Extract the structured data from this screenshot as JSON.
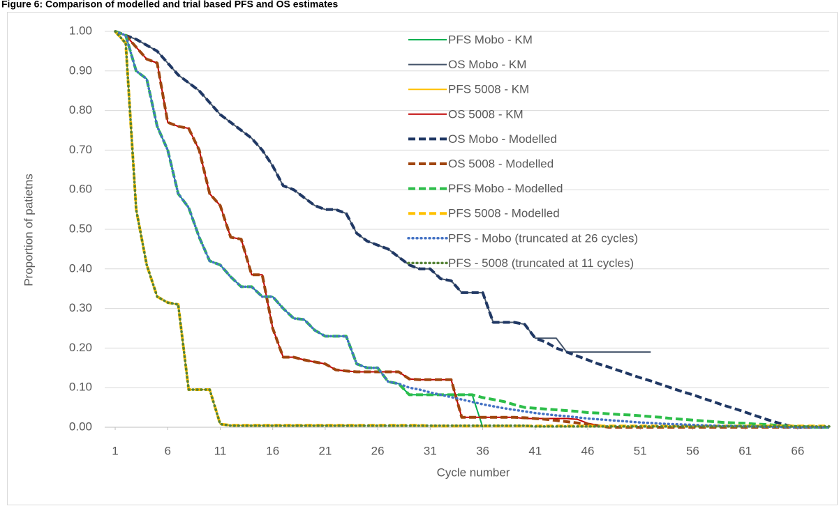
{
  "chart_data": {
    "type": "line",
    "title": "Figure 6: Comparison of modelled and trial based PFS and OS estimates",
    "x_label": "Cycle number",
    "y_label": "Proportion of patietns",
    "x": [
      1,
      2,
      3,
      4,
      5,
      6,
      7,
      8,
      9,
      10,
      11,
      12,
      13,
      14,
      15,
      16,
      17,
      18,
      19,
      20,
      21,
      22,
      23,
      24,
      25,
      26,
      27,
      28,
      29,
      30,
      31,
      32,
      33,
      34,
      35,
      36,
      37,
      38,
      39,
      40,
      41,
      42,
      43,
      44,
      45,
      46,
      47,
      48,
      49,
      50,
      51,
      52,
      53,
      54,
      55,
      56,
      57,
      58,
      59,
      60,
      61,
      62,
      63,
      64,
      65,
      66,
      67,
      68,
      69
    ],
    "xlim": [
      0,
      69
    ],
    "xticks": [
      1,
      6,
      11,
      16,
      21,
      26,
      31,
      36,
      41,
      46,
      51,
      56,
      61,
      66
    ],
    "ylim": [
      0,
      1
    ],
    "yticks": [
      {
        "value": 0,
        "label": "0.00"
      },
      {
        "value": 0.1,
        "label": "0.10"
      },
      {
        "value": 0.2,
        "label": "0.20"
      },
      {
        "value": 0.3,
        "label": "0.30"
      },
      {
        "value": 0.4,
        "label": "0.40"
      },
      {
        "value": 0.5,
        "label": "0.50"
      },
      {
        "value": 0.6,
        "label": "0.60"
      },
      {
        "value": 0.7,
        "label": "0.70"
      },
      {
        "value": 0.8,
        "label": "0.80"
      },
      {
        "value": 0.9,
        "label": "0.90"
      },
      {
        "value": 1,
        "label": "1.00"
      }
    ],
    "grid": true,
    "legend_position": "top-center",
    "series": [
      {
        "name": "PFS Mobo - KM",
        "color": "#00b050",
        "dash": "solid",
        "values": [
          1.0,
          0.99,
          0.9,
          0.88,
          0.76,
          0.7,
          0.59,
          0.555,
          0.48,
          0.42,
          0.41,
          0.38,
          0.355,
          0.355,
          0.33,
          0.33,
          0.3,
          0.275,
          0.272,
          0.245,
          0.23,
          0.23,
          0.23,
          0.16,
          0.15,
          0.15,
          0.115,
          0.11,
          0.082,
          0.082,
          0.082,
          0.082,
          0.082,
          0.082,
          0.082,
          0,
          null,
          null,
          null,
          null,
          null,
          null,
          null,
          null,
          null,
          null,
          null,
          null,
          null,
          null,
          null,
          null,
          null,
          null,
          null,
          null,
          null,
          null,
          null,
          null,
          null,
          null,
          null,
          null,
          null,
          null,
          null,
          null,
          null
        ]
      },
      {
        "name": "OS Mobo - KM",
        "color": "#44546a",
        "dash": "solid",
        "values": [
          1.0,
          0.99,
          0.98,
          0.965,
          0.95,
          0.92,
          0.89,
          0.87,
          0.85,
          0.82,
          0.79,
          0.77,
          0.75,
          0.73,
          0.7,
          0.66,
          0.61,
          0.6,
          0.58,
          0.56,
          0.55,
          0.55,
          0.54,
          0.49,
          0.47,
          0.46,
          0.45,
          0.43,
          0.41,
          0.4,
          0.4,
          0.375,
          0.37,
          0.34,
          0.34,
          0.34,
          0.265,
          0.265,
          0.265,
          0.26,
          0.225,
          0.225,
          0.225,
          0.19,
          0.19,
          0.19,
          0.19,
          0.19,
          0.19,
          0.19,
          0.19,
          0.19,
          null,
          null,
          null,
          null,
          null,
          null,
          null,
          null,
          null,
          null,
          null,
          null,
          null,
          null,
          null,
          null,
          null
        ]
      },
      {
        "name": "PFS 5008 - KM",
        "color": "#ffc000",
        "dash": "solid",
        "values": [
          1.0,
          0.97,
          0.55,
          0.41,
          0.33,
          0.315,
          0.31,
          0.095,
          0.095,
          0.095,
          0.008,
          0.005,
          0.005,
          0.005,
          0.005,
          0.005,
          0.005,
          0.005,
          0.005,
          0.005,
          0.005,
          0.005,
          0.005,
          0.005,
          null,
          null,
          null,
          null,
          null,
          null,
          null,
          null,
          null,
          null,
          null,
          null,
          null,
          null,
          null,
          null,
          null,
          null,
          null,
          null,
          null,
          null,
          null,
          null,
          null,
          null,
          null,
          null,
          null,
          null,
          null,
          null,
          null,
          null,
          null,
          null,
          null,
          null,
          null,
          null,
          null,
          null,
          null,
          null,
          null
        ]
      },
      {
        "name": "OS 5008 - KM",
        "color": "#c00000",
        "dash": "solid",
        "values": [
          1.0,
          0.99,
          0.96,
          0.93,
          0.92,
          0.77,
          0.76,
          0.755,
          0.7,
          0.59,
          0.56,
          0.48,
          0.475,
          0.385,
          0.385,
          0.25,
          0.177,
          0.177,
          0.17,
          0.165,
          0.16,
          0.145,
          0.142,
          0.14,
          0.14,
          0.14,
          0.14,
          0.14,
          0.122,
          0.12,
          0.12,
          0.12,
          0.12,
          0.025,
          0.025,
          0.025,
          0.025,
          0.025,
          0.025,
          0.022,
          0.022,
          0.022,
          0.022,
          0.022,
          0.02,
          0.01,
          0.005,
          0,
          null,
          null,
          null,
          null,
          null,
          null,
          null,
          null,
          null,
          null,
          null,
          null,
          null,
          null,
          null,
          null,
          null,
          null,
          null,
          null,
          null
        ]
      },
      {
        "name": "OS Mobo - Modelled",
        "color": "#203864",
        "dash": "dashed",
        "values": [
          1.0,
          0.99,
          0.98,
          0.965,
          0.95,
          0.92,
          0.89,
          0.87,
          0.85,
          0.82,
          0.79,
          0.77,
          0.75,
          0.73,
          0.7,
          0.66,
          0.61,
          0.6,
          0.58,
          0.56,
          0.55,
          0.55,
          0.54,
          0.49,
          0.47,
          0.46,
          0.45,
          0.43,
          0.41,
          0.4,
          0.4,
          0.375,
          0.37,
          0.34,
          0.34,
          0.34,
          0.265,
          0.265,
          0.265,
          0.26,
          0.225,
          0.215,
          0.2,
          0.19,
          0.18,
          0.17,
          0.16,
          0.152,
          0.143,
          0.134,
          0.125,
          0.117,
          0.108,
          0.099,
          0.09,
          0.082,
          0.073,
          0.064,
          0.055,
          0.047,
          0.038,
          0.029,
          0.02,
          0.012,
          0.005,
          0,
          0,
          0,
          0
        ]
      },
      {
        "name": "OS 5008 - Modelled",
        "color": "#a0450f",
        "dash": "dashed",
        "values": [
          1.0,
          0.99,
          0.96,
          0.93,
          0.92,
          0.77,
          0.76,
          0.755,
          0.7,
          0.59,
          0.56,
          0.48,
          0.475,
          0.385,
          0.385,
          0.25,
          0.177,
          0.177,
          0.17,
          0.165,
          0.16,
          0.145,
          0.142,
          0.14,
          0.14,
          0.14,
          0.14,
          0.14,
          0.122,
          0.12,
          0.12,
          0.12,
          0.12,
          0.025,
          0.025,
          0.025,
          0.025,
          0.025,
          0.025,
          0.024,
          0.022,
          0.02,
          0.017,
          0.014,
          0.011,
          0.008,
          0.004,
          0,
          0,
          0,
          0,
          0,
          0,
          0,
          0,
          0,
          0,
          0,
          0,
          0,
          0,
          0,
          0,
          0,
          0,
          0,
          0,
          0,
          0
        ]
      },
      {
        "name": "PFS Mobo - Modelled",
        "color": "#2dbe4a",
        "dash": "dashed",
        "values": [
          1.0,
          0.99,
          0.9,
          0.88,
          0.76,
          0.7,
          0.59,
          0.555,
          0.48,
          0.42,
          0.41,
          0.38,
          0.355,
          0.355,
          0.33,
          0.33,
          0.3,
          0.275,
          0.272,
          0.245,
          0.23,
          0.23,
          0.23,
          0.16,
          0.15,
          0.15,
          0.115,
          0.11,
          0.082,
          0.082,
          0.082,
          0.082,
          0.082,
          0.082,
          0.082,
          0.075,
          0.07,
          0.065,
          0.057,
          0.05,
          0.048,
          0.046,
          0.044,
          0.042,
          0.04,
          0.037,
          0.036,
          0.034,
          0.032,
          0.031,
          0.029,
          0.027,
          0.025,
          0.022,
          0.02,
          0.018,
          0.016,
          0.014,
          0.012,
          0.011,
          0.01,
          0.008,
          0.007,
          0.005,
          0.003,
          0.002,
          0.001,
          0,
          0
        ]
      },
      {
        "name": "PFS 5008 - Modelled",
        "color": "#ffc000",
        "dash": "dashed",
        "values": [
          1.0,
          0.97,
          0.55,
          0.41,
          0.33,
          0.315,
          0.31,
          0.095,
          0.095,
          0.095,
          0.008,
          0.005,
          0.005,
          0.005,
          0.005,
          0.005,
          0.005,
          0.005,
          0.005,
          0.005,
          0.005,
          0.005,
          0.005,
          0.005,
          0.005,
          0.005,
          0.005,
          0.005,
          0.005,
          0.005,
          0.003,
          0.003,
          0.003,
          0.003,
          0.003,
          0.003,
          0.003,
          0.003,
          0.003,
          0.003,
          0.003,
          0.003,
          0.003,
          0.003,
          0.003,
          0.003,
          0.003,
          0.003,
          0.003,
          0.003,
          0.003,
          0.003,
          0.003,
          0.003,
          0.003,
          0.003,
          0.003,
          0.003,
          0.003,
          0.003,
          0.003,
          0.003,
          0.003,
          0.003,
          0.003,
          0.003,
          0.003,
          0.003,
          0.003
        ]
      },
      {
        "name": "PFS - Mobo (truncated at 26 cycles)",
        "color": "#4472c4",
        "dash": "dotted",
        "values": [
          1.0,
          0.99,
          0.9,
          0.88,
          0.76,
          0.7,
          0.59,
          0.555,
          0.48,
          0.42,
          0.41,
          0.38,
          0.355,
          0.355,
          0.33,
          0.33,
          0.3,
          0.275,
          0.272,
          0.245,
          0.23,
          0.23,
          0.23,
          0.16,
          0.15,
          0.15,
          0.115,
          0.11,
          0.1,
          0.095,
          0.088,
          0.082,
          0.076,
          0.07,
          0.064,
          0.058,
          0.053,
          0.048,
          0.044,
          0.04,
          0.036,
          0.033,
          0.03,
          0.028,
          0.025,
          0.022,
          0.02,
          0.018,
          0.016,
          0.014,
          0.012,
          0.011,
          0.009,
          0.008,
          0.007,
          0.006,
          0.005,
          0.004,
          0.003,
          0.003,
          0.002,
          0.002,
          0.001,
          0.001,
          0,
          0,
          0,
          0,
          0
        ]
      },
      {
        "name": "PFS - 5008 (truncated at 11 cycles)",
        "color": "#548235",
        "dash": "dotted",
        "values": [
          1.0,
          0.97,
          0.55,
          0.41,
          0.33,
          0.315,
          0.31,
          0.095,
          0.095,
          0.095,
          0.008,
          0.004,
          0.004,
          0.004,
          0.004,
          0.004,
          0.004,
          0.004,
          0.004,
          0.004,
          0.004,
          0.004,
          0.004,
          0.004,
          0.004,
          0.004,
          0.004,
          0.004,
          0.004,
          0.004,
          0.004,
          0.004,
          0.004,
          0.004,
          0.004,
          0.004,
          0.004,
          0.004,
          0.004,
          0.004,
          0.002,
          0.002,
          0.002,
          0.002,
          0.002,
          0.002,
          0.002,
          0.002,
          0.002,
          0.002,
          0.002,
          0.002,
          0.002,
          0.002,
          0.002,
          0.002,
          0.002,
          0.002,
          0.002,
          0.002,
          0.002,
          0.002,
          0.002,
          0.002,
          0.002,
          0.002,
          0.002,
          0.002,
          0.002
        ]
      }
    ]
  }
}
